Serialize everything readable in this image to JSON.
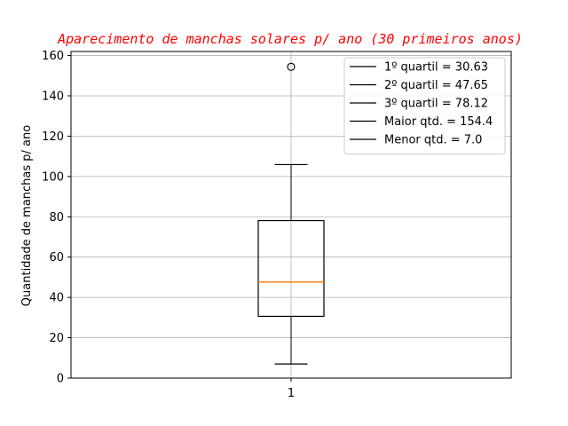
{
  "chart_data": {
    "type": "box",
    "title": "Aparecimento de manchas solares p/ ano (30 primeiros anos)",
    "xlabel": "",
    "ylabel": "Quantidade de manchas p/ ano",
    "categories": [
      "1"
    ],
    "ylim": [
      0,
      162
    ],
    "yticks": [
      0,
      20,
      40,
      60,
      80,
      100,
      120,
      140,
      160
    ],
    "grid": true,
    "legend_position": "top-right",
    "box": {
      "q1": 30.63,
      "median": 47.65,
      "q3": 78.12,
      "whisker_low": 7.0,
      "whisker_high": 105.9,
      "outliers": [
        154.4
      ]
    },
    "legend": [
      "1º quartil = 30.63",
      "2º quartil = 47.65",
      "3º quartil = 78.12",
      "Maior qtd. = 154.4",
      "Menor qtd. = 7.0"
    ],
    "colors": {
      "title": "#ff0000",
      "median": "#ff7f0e",
      "box": "#000000",
      "grid": "#b0b0b0"
    }
  }
}
